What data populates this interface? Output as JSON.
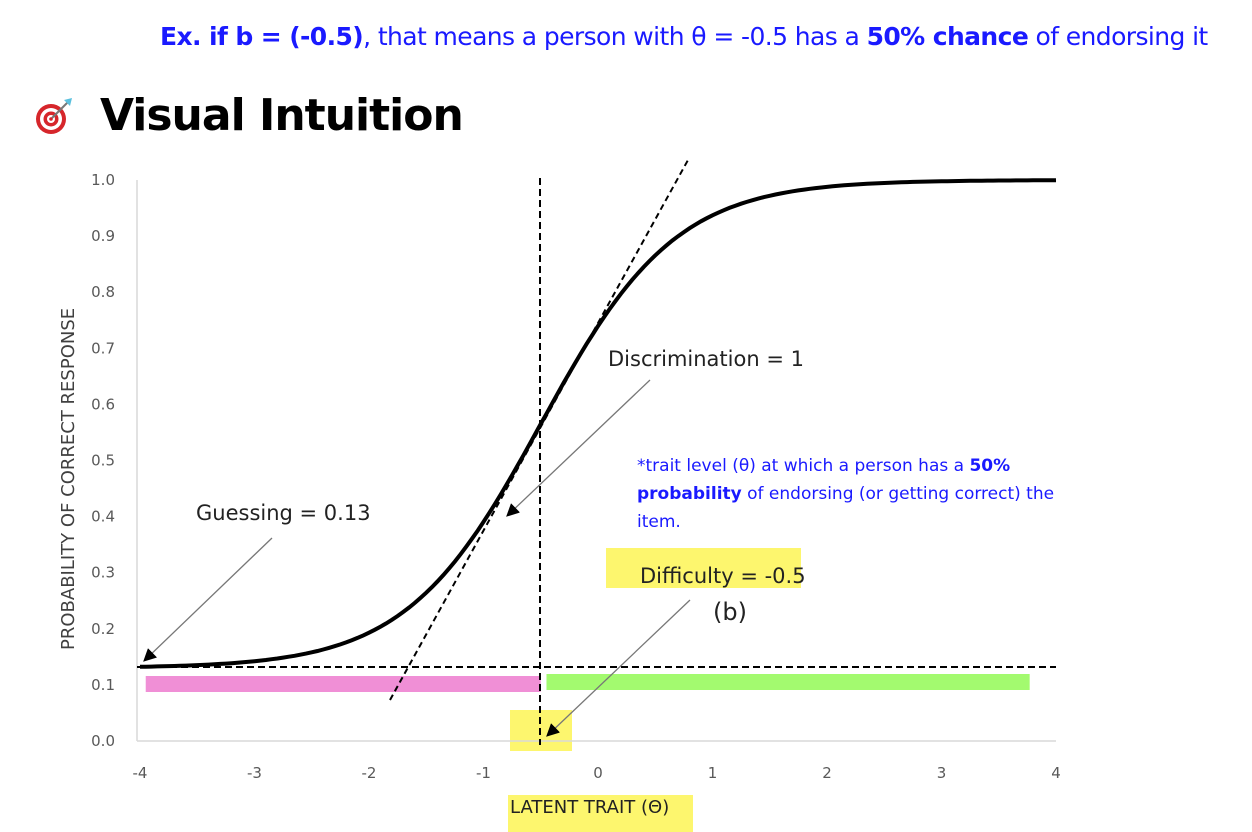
{
  "header": {
    "example_prefix": "Ex. if ",
    "example_b": "b = (-0.5)",
    "example_mid": ", that means a person with θ = -0.5 has a ",
    "example_chance": "50% chance",
    "example_suffix": " of endorsing it"
  },
  "section": {
    "title": "Visual Intuition",
    "icon": "dart-target-icon"
  },
  "note": {
    "prefix": "*trait level (θ) at which a person has a ",
    "bold": "50% probability",
    "suffix": " of endorsing (or getting correct) the item."
  },
  "chart_data": {
    "type": "line",
    "title": "",
    "xlabel": "LATENT TRAIT (Θ)",
    "ylabel": "PROBABILITY OF CORRECT RESPONSE",
    "xlim": [
      -4,
      4
    ],
    "ylim": [
      0,
      1
    ],
    "x_ticks": [
      "-4",
      "-3",
      "-2",
      "-1",
      "0",
      "1",
      "2",
      "3",
      "4"
    ],
    "y_ticks": [
      "0.0",
      "0.1",
      "0.2",
      "0.3",
      "0.4",
      "0.5",
      "0.6",
      "0.7",
      "0.8",
      "0.9",
      "1.0"
    ],
    "grid": false,
    "model": {
      "guessing": 0.13,
      "difficulty": -0.5,
      "discrimination": 1
    },
    "annotations": {
      "discrimination": "Discrimination = 1",
      "guessing": "Guessing = 0.13",
      "difficulty": "Difficulty = -0.5",
      "b_label": "(b)"
    },
    "bands": [
      {
        "from": -3.95,
        "to": -0.5,
        "color": "#f08fd6"
      },
      {
        "from": -0.45,
        "to": 3.77,
        "color": "#a3fa6f"
      }
    ],
    "highlight_color": "#fdf66e"
  }
}
